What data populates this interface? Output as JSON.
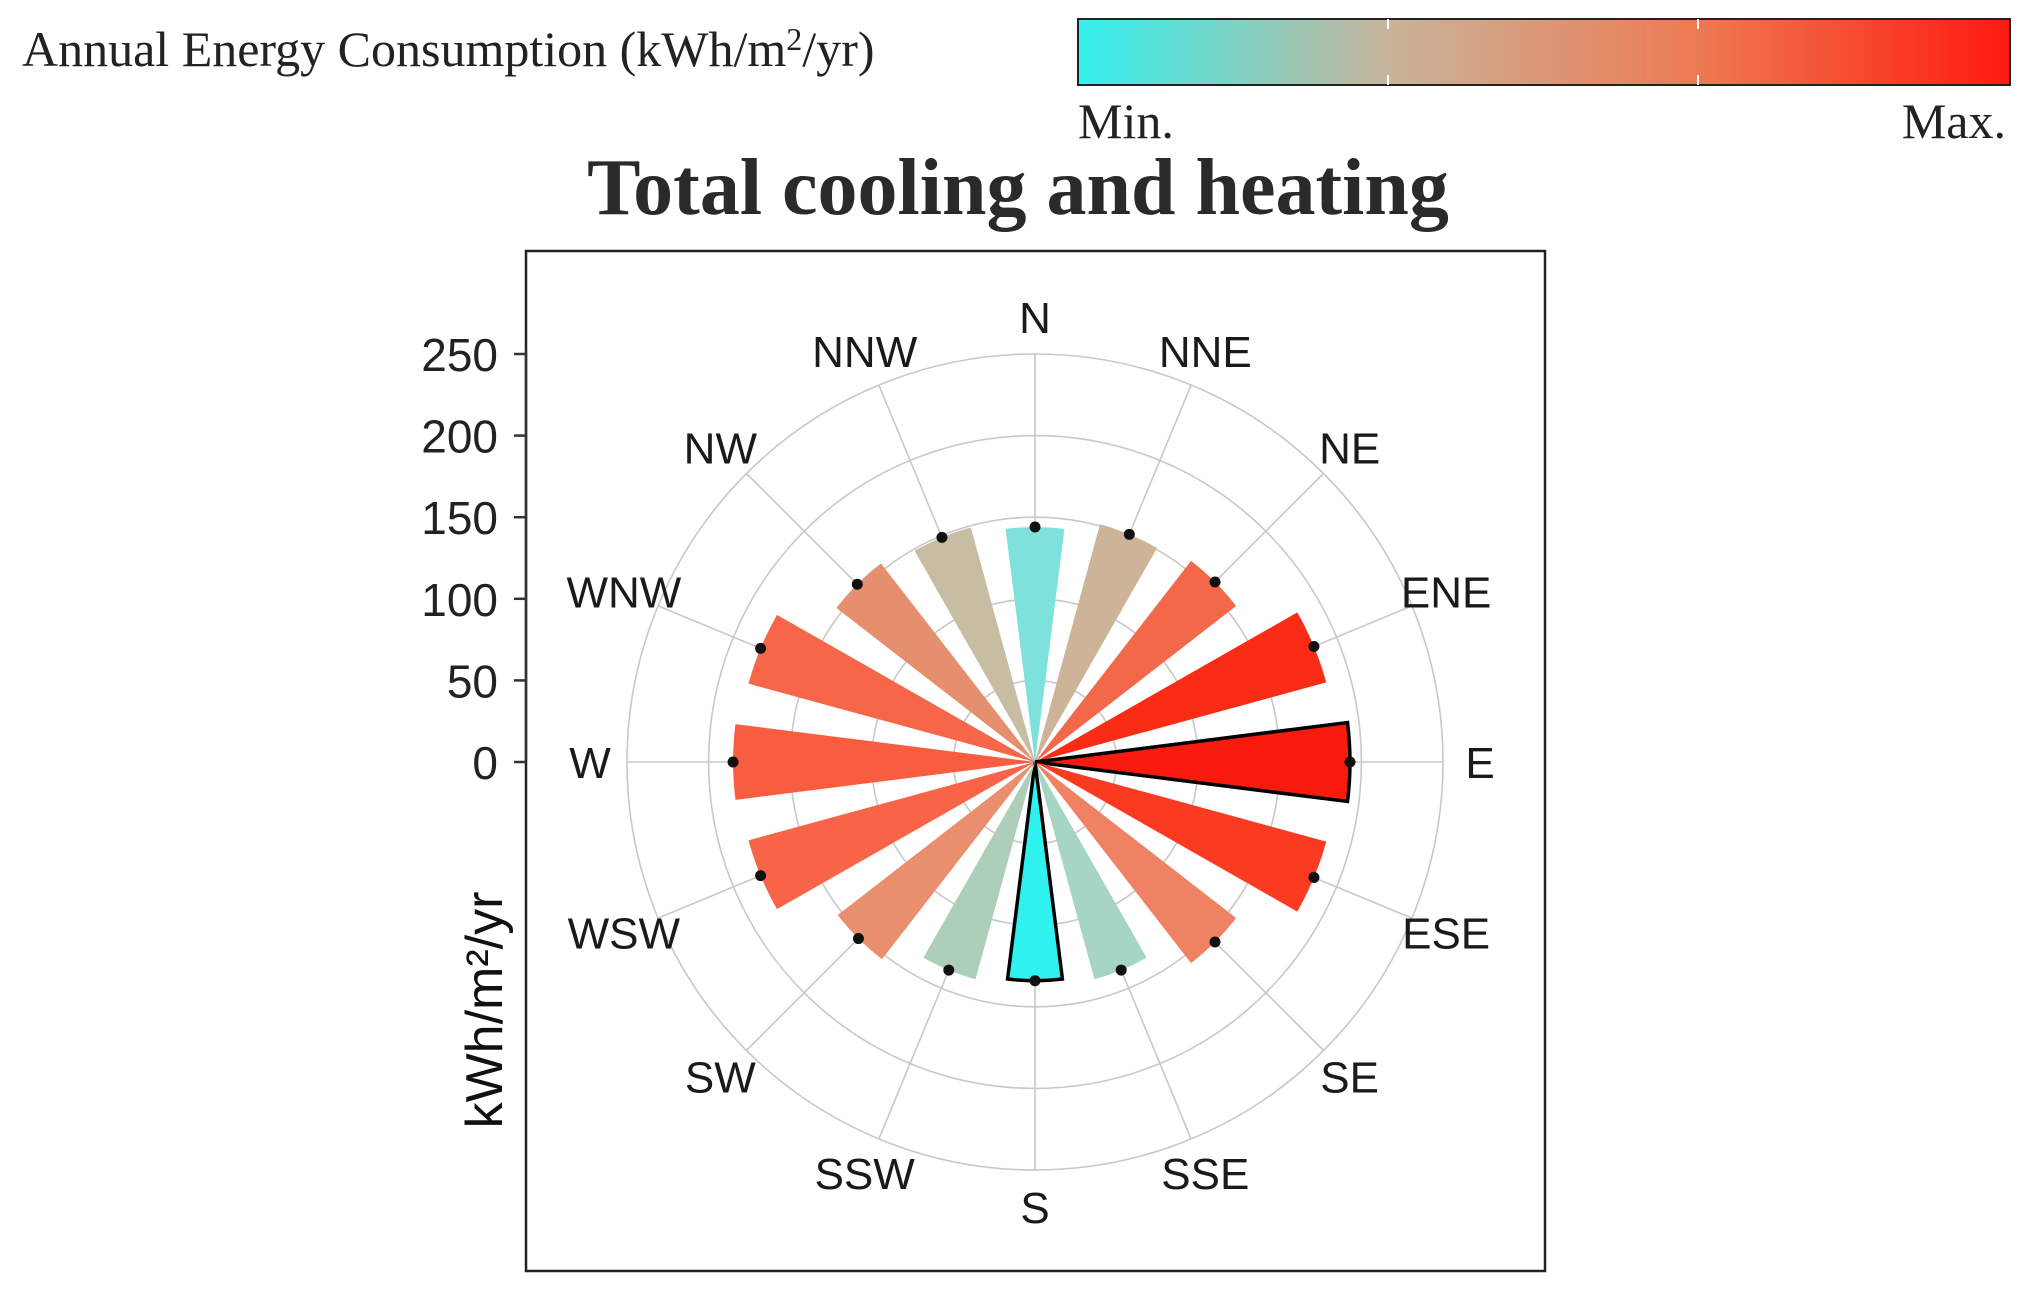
{
  "chart_data": {
    "type": "polar-bar",
    "title": "Total cooling and heating",
    "ylabel": "kWh/m²/yr",
    "ylim": [
      0,
      250
    ],
    "yticks": [
      0,
      50,
      100,
      150,
      200,
      250
    ],
    "ytick_labels": [
      "0",
      "50",
      "100",
      "150",
      "200",
      "250"
    ],
    "rings": [
      50,
      100,
      150,
      200,
      250
    ],
    "inner_radius_value": 0,
    "grid": true,
    "colorbar": {
      "title_text": "Annual Energy Consumption (kWh/m",
      "title_sup": "2",
      "title_end": "/yr)",
      "min_label": "Min.",
      "max_label": "Max.",
      "colors": [
        "#33f2f0",
        "#c8b49a",
        "#ee7a52",
        "#ff1a10"
      ]
    },
    "categories": [
      "N",
      "NNE",
      "NE",
      "ENE",
      "E",
      "ESE",
      "SE",
      "SSE",
      "S",
      "SSW",
      "SW",
      "WSW",
      "W",
      "WNW",
      "NW",
      "NNW"
    ],
    "values": [
      144,
      151,
      156,
      185,
      193,
      185,
      156,
      138,
      134,
      138,
      153,
      182,
      185,
      182,
      154,
      149
    ],
    "colors": [
      "#7fe1dc",
      "#cdb398",
      "#f4684a",
      "#fb2c16",
      "#fa1a0e",
      "#fb3a22",
      "#ef8262",
      "#a6d5c3",
      "#2ff1ee",
      "#adcfb9",
      "#e98f6d",
      "#f76448",
      "#f95d3f",
      "#f76648",
      "#e68f6e",
      "#c6bda3"
    ],
    "highlighted": [
      "E",
      "S"
    ]
  }
}
